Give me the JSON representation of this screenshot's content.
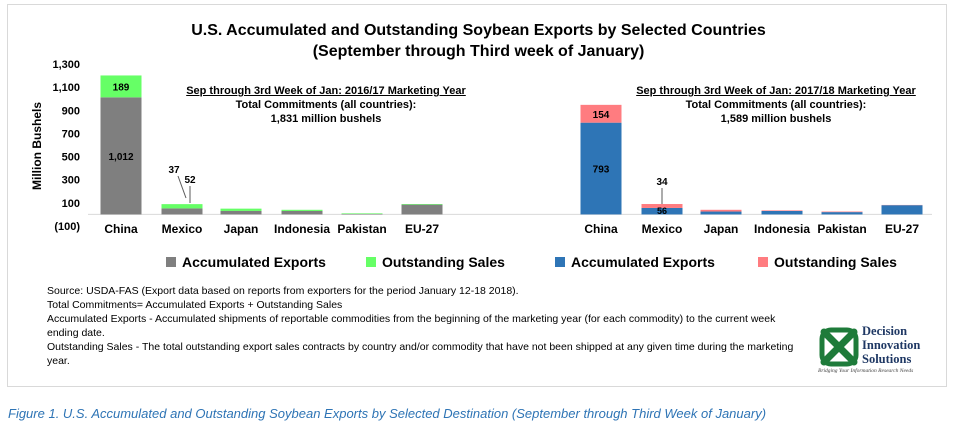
{
  "title_line1": "U.S. Accumulated and Outstanding Soybean Exports by Selected Countries",
  "title_line2": "(September through Third week of January)",
  "chart_data": [
    {
      "type": "bar",
      "stacked": true,
      "name": "Sep through 3rd Week of Jan: 2016/17 Marketing Year",
      "categories": [
        "China",
        "Mexico",
        "Japan",
        "Indonesia",
        "Pakistan",
        "EU-27"
      ],
      "series": [
        {
          "name": "Accumulated Exports",
          "color": "#7f7f7f",
          "values": [
            1012,
            52,
            30,
            30,
            5,
            85
          ]
        },
        {
          "name": "Outstanding Sales",
          "color": "#66ff66",
          "values": [
            189,
            37,
            20,
            10,
            5,
            5
          ]
        }
      ],
      "data_labels": {
        "accumulated": [
          "1,012",
          "52",
          "",
          "",
          "",
          ""
        ],
        "outstanding": [
          "189",
          "37",
          "",
          "",
          "",
          ""
        ]
      },
      "ylabel": "Million Bushels",
      "ylim": [
        -100,
        1300
      ],
      "yticks": [
        "(100)",
        "100",
        "300",
        "500",
        "700",
        "900",
        "1,100",
        "1,300"
      ],
      "ytick_values": [
        -100,
        100,
        300,
        500,
        700,
        900,
        1100,
        1300
      ],
      "grid": false
    },
    {
      "type": "bar",
      "stacked": true,
      "name": "Sep through 3rd Week of Jan: 2017/18 Marketing Year",
      "categories": [
        "China",
        "Mexico",
        "Japan",
        "Indonesia",
        "Pakistan",
        "EU-27"
      ],
      "series": [
        {
          "name": "Accumulated Exports",
          "color": "#2e75b6",
          "values": [
            793,
            56,
            25,
            30,
            20,
            80
          ]
        },
        {
          "name": "Outstanding Sales",
          "color": "#ff7c80",
          "values": [
            154,
            34,
            15,
            5,
            5,
            2
          ]
        }
      ],
      "data_labels": {
        "accumulated": [
          "793",
          "56",
          "",
          "",
          "",
          ""
        ],
        "outstanding": [
          "154",
          "34",
          "",
          "",
          "",
          ""
        ]
      },
      "ylim": [
        -100,
        1300
      ]
    }
  ],
  "annotations": {
    "left": {
      "line1": "Sep through 3rd Week of Jan: 2016/17 Marketing Year",
      "line2": "Total Commitments (all countries):",
      "line3": "1,831 million bushels"
    },
    "right": {
      "line1": "Sep through 3rd Week of Jan:  2017/18 Marketing Year",
      "line2": "Total Commitments (all countries):",
      "line3": "1,589 million bushels"
    }
  },
  "legend": [
    {
      "label": "Accumulated Exports",
      "color": "#7f7f7f"
    },
    {
      "label": "Outstanding Sales",
      "color": "#66ff66"
    },
    {
      "label": "Accumulated Exports",
      "color": "#2e75b6"
    },
    {
      "label": "Outstanding Sales",
      "color": "#ff7c80"
    }
  ],
  "notes": {
    "source": "Source: USDA-FAS (Export data based on reports from exporters for the period January 12-18 2018).",
    "total": "Total Commitments= Accumulated Exports + Outstanding Sales",
    "accumulated": "Accumulated Exports - Accumulated shipments of reportable commodities from the beginning of the marketing year (for each commodity) to the current week ending date.",
    "outstanding": "Outstanding Sales - The total outstanding export sales contracts by country and/or commodity that have not been shipped at any given time during the marketing year."
  },
  "logo": {
    "line1": "Decision",
    "line2": "Innovation",
    "line3": "Solutions",
    "tagline": "Bridging Your Information Research Needs"
  },
  "caption": "Figure 1. U.S. Accumulated and Outstanding Soybean Exports by Selected Destination (September through Third Week of January)"
}
